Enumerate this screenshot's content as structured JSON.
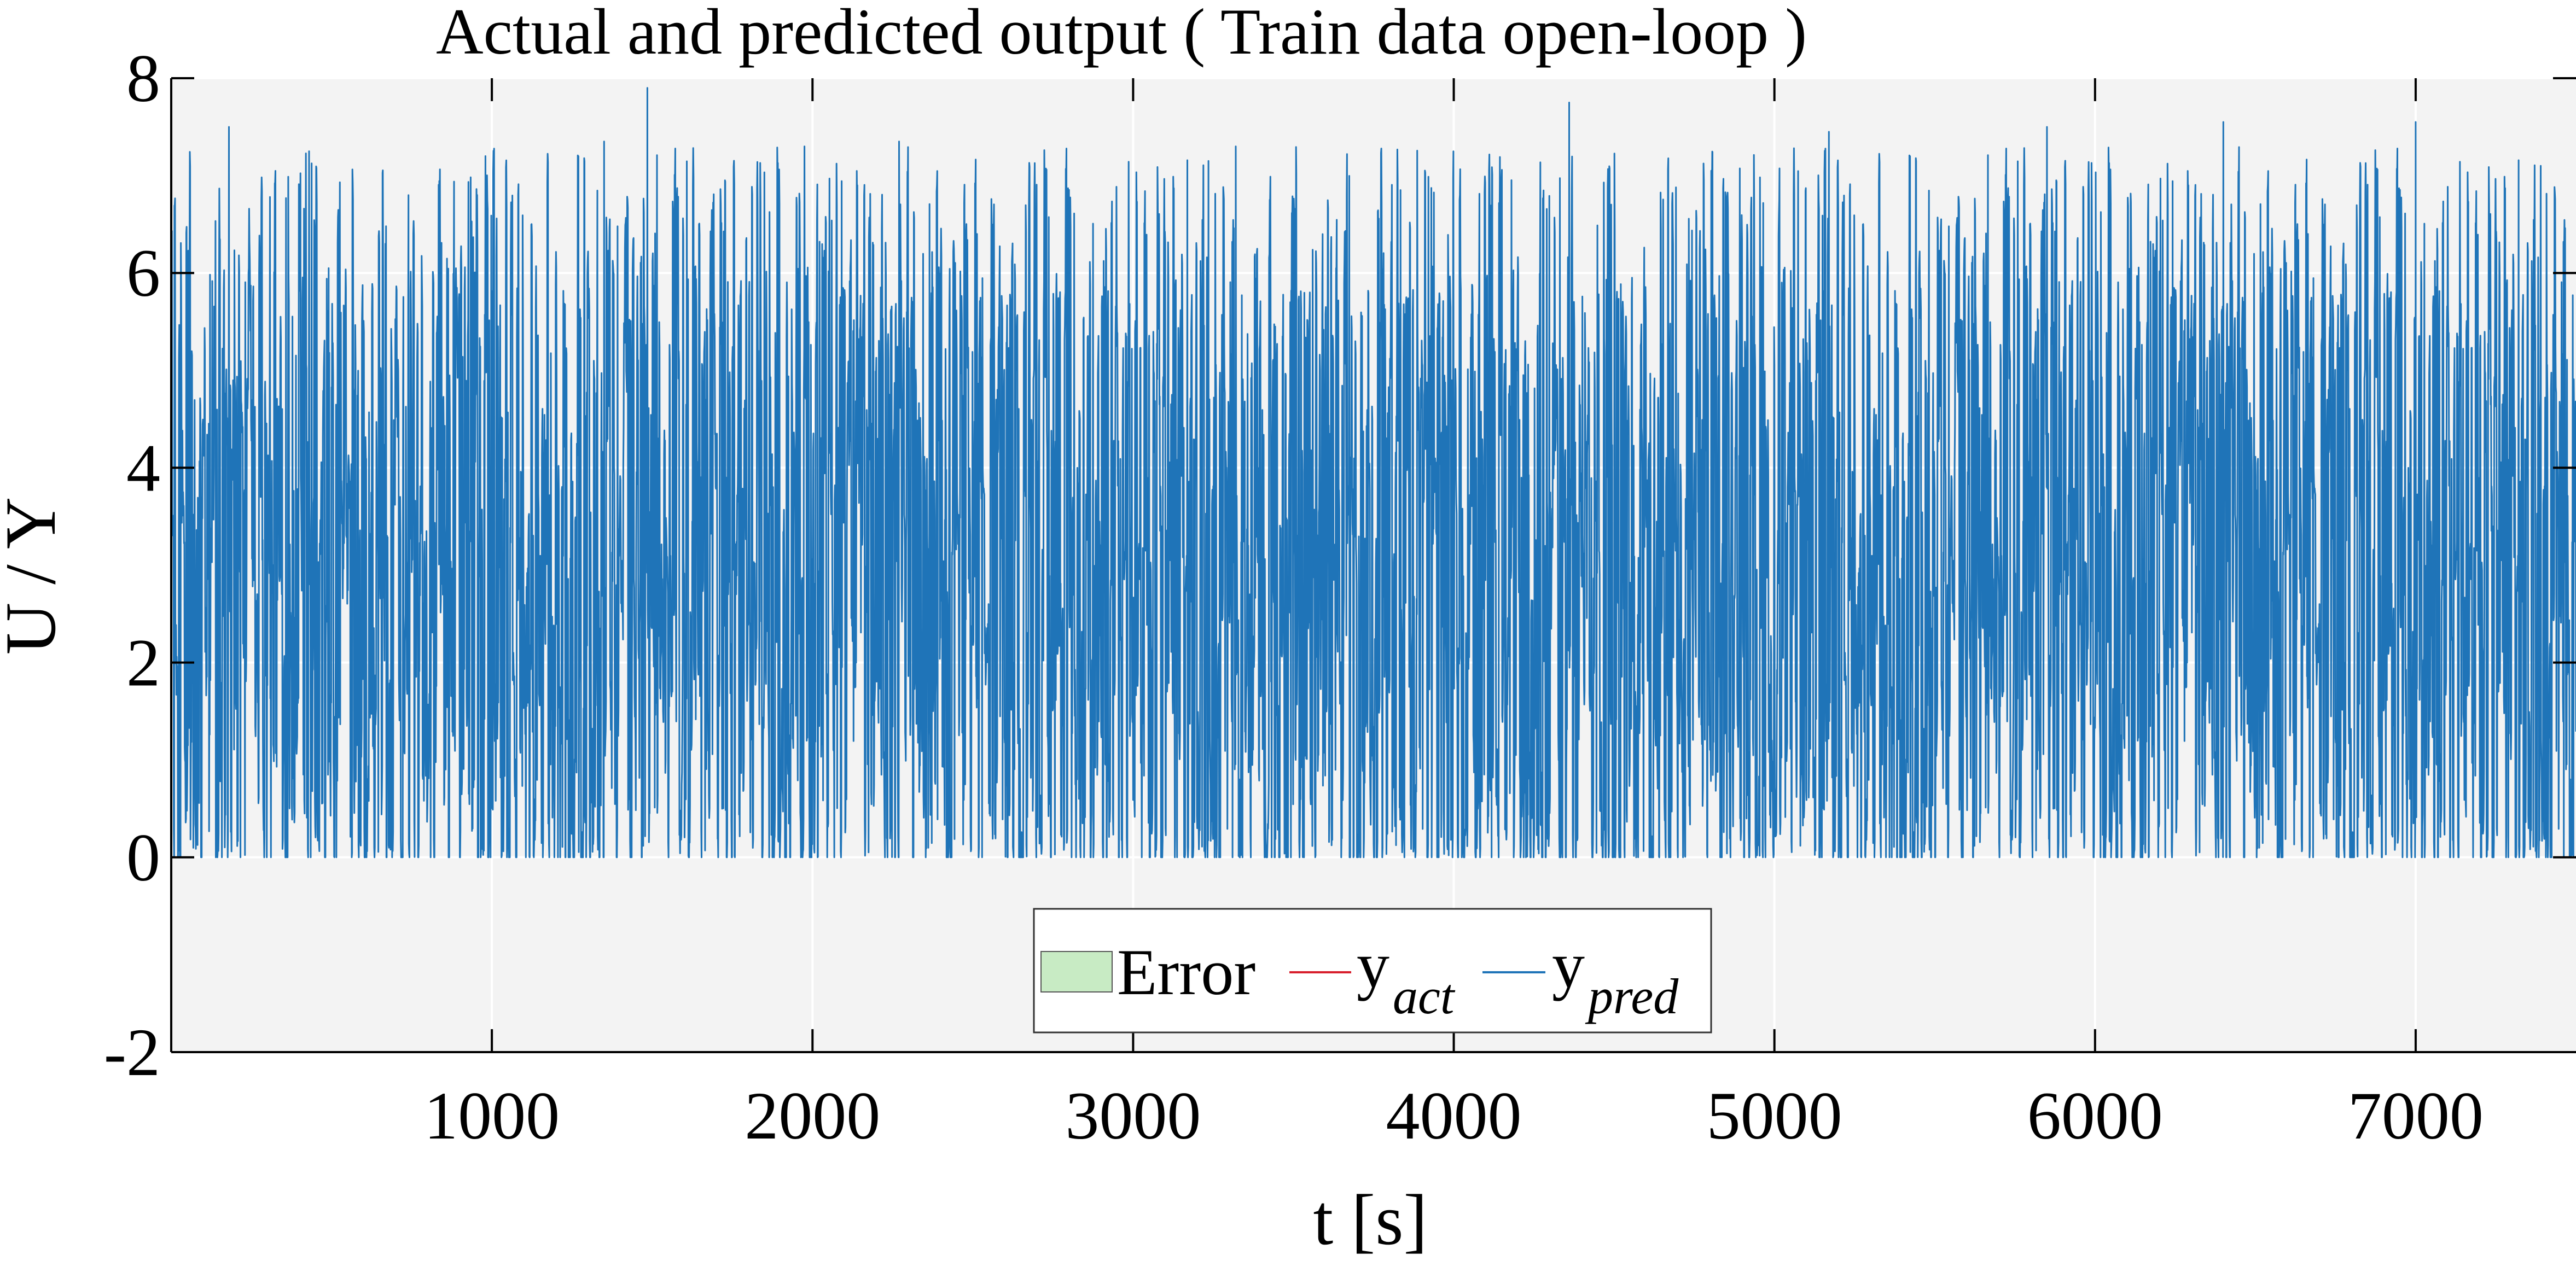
{
  "chart_data": {
    "type": "line",
    "title": "Actual and predicted output ( Train data open-loop  )",
    "xlabel": "t [s]",
    "ylabel": "U / Y",
    "xlim": [
      0,
      7500
    ],
    "ylim": [
      -2,
      8
    ],
    "x_ticks": [
      1000,
      2000,
      3000,
      4000,
      5000,
      6000,
      7000
    ],
    "x_tick_labels": [
      "1000",
      "2000",
      "3000",
      "4000",
      "5000",
      "6000",
      "7000"
    ],
    "y_ticks": [
      -2,
      0,
      2,
      4,
      6,
      8
    ],
    "y_tick_labels": [
      "-2",
      "0",
      "2",
      "4",
      "6",
      "8"
    ],
    "grid": true,
    "legend_position": "bottom-center",
    "legend": [
      {
        "label": "Error",
        "kind": "patch",
        "color": "#c8ebc4"
      },
      {
        "label": "y",
        "sub": "act",
        "kind": "line",
        "color": "#d81e2c"
      },
      {
        "label": "y",
        "sub": "pred",
        "kind": "line",
        "color": "#1f74b8"
      }
    ],
    "series": [
      {
        "name": "y_pred",
        "color": "#1f74b8",
        "x_start": 1,
        "x_step": 1,
        "n_samples": 7500,
        "y_min": 0,
        "y_max": 7.9,
        "peaks": [
          {
            "x": 180,
            "y": 7.5
          },
          {
            "x": 430,
            "y": 7.25
          },
          {
            "x": 980,
            "y": 7.2
          },
          {
            "x": 1350,
            "y": 7.35
          },
          {
            "x": 1485,
            "y": 7.9
          },
          {
            "x": 1975,
            "y": 7.3
          },
          {
            "x": 2270,
            "y": 7.35
          },
          {
            "x": 3235,
            "y": 7.15
          },
          {
            "x": 3320,
            "y": 7.3
          },
          {
            "x": 4360,
            "y": 7.75
          },
          {
            "x": 5170,
            "y": 7.45
          },
          {
            "x": 5850,
            "y": 7.5
          },
          {
            "x": 6400,
            "y": 7.55
          },
          {
            "x": 7000,
            "y": 7.55
          },
          {
            "x": 7390,
            "y": 7.1
          }
        ]
      },
      {
        "name": "y_act",
        "color": "#d81e2c"
      }
    ],
    "colors": {
      "plot_background": "#f3f3f3",
      "grid": "#ffffff",
      "axis": "#000000"
    }
  }
}
